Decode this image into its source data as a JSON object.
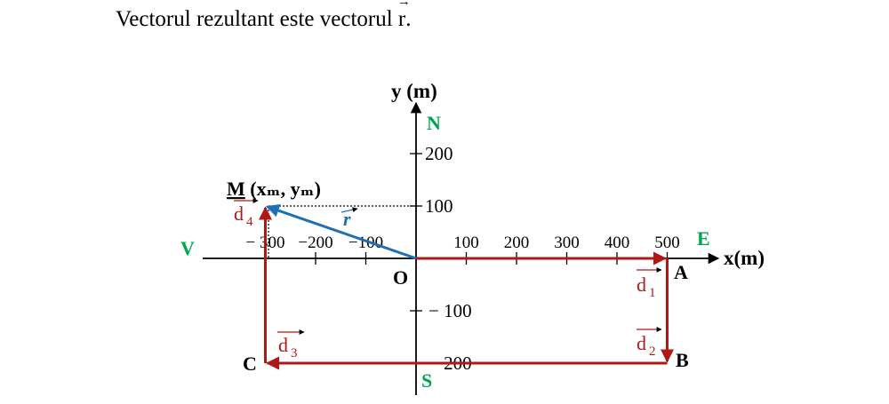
{
  "sentence": {
    "text": "Vectorul rezultant este vectorul ",
    "vector": "r",
    "end": "."
  },
  "axes": {
    "x_label": "x(m)",
    "y_label": "y (m)"
  },
  "cardinals": {
    "north": "N",
    "south": "S",
    "east": "E",
    "west": "V",
    "color": "#00a550"
  },
  "x_ticks": [
    {
      "value": -300,
      "label": "− 300"
    },
    {
      "value": -200,
      "label": "−200"
    },
    {
      "value": -100,
      "label": "−100"
    },
    {
      "value": 100,
      "label": "100"
    },
    {
      "value": 200,
      "label": "200"
    },
    {
      "value": 300,
      "label": "300"
    },
    {
      "value": 400,
      "label": "400"
    },
    {
      "value": 500,
      "label": "500"
    }
  ],
  "y_ticks": [
    {
      "value": 200,
      "label": "200"
    },
    {
      "value": 100,
      "label": "100"
    },
    {
      "value": -100,
      "label": "− 100"
    },
    {
      "value": -200,
      "label": "− 200"
    }
  ],
  "points": {
    "origin": "O",
    "A": "A",
    "B": "B",
    "C": "C",
    "M_name": "M",
    "M_coords": "(xₘ, yₘ)"
  },
  "displacements": [
    {
      "id": "d1",
      "symbol": "d",
      "sub": "1",
      "from": [
        0,
        0
      ],
      "to": [
        500,
        0
      ]
    },
    {
      "id": "d2",
      "symbol": "d",
      "sub": "2",
      "from": [
        500,
        0
      ],
      "to": [
        500,
        -200
      ]
    },
    {
      "id": "d3",
      "symbol": "d",
      "sub": "3",
      "from": [
        500,
        -200
      ],
      "to": [
        -300,
        -200
      ]
    },
    {
      "id": "d4",
      "symbol": "d",
      "sub": "4",
      "from": [
        -300,
        -200
      ],
      "to": [
        -300,
        100
      ]
    }
  ],
  "resultant": {
    "symbol": "r",
    "from": [
      0,
      0
    ],
    "to": [
      -300,
      100
    ]
  },
  "colors": {
    "displacement": "#b01818",
    "resultant": "#1f6fb5",
    "axis": "#000000"
  }
}
